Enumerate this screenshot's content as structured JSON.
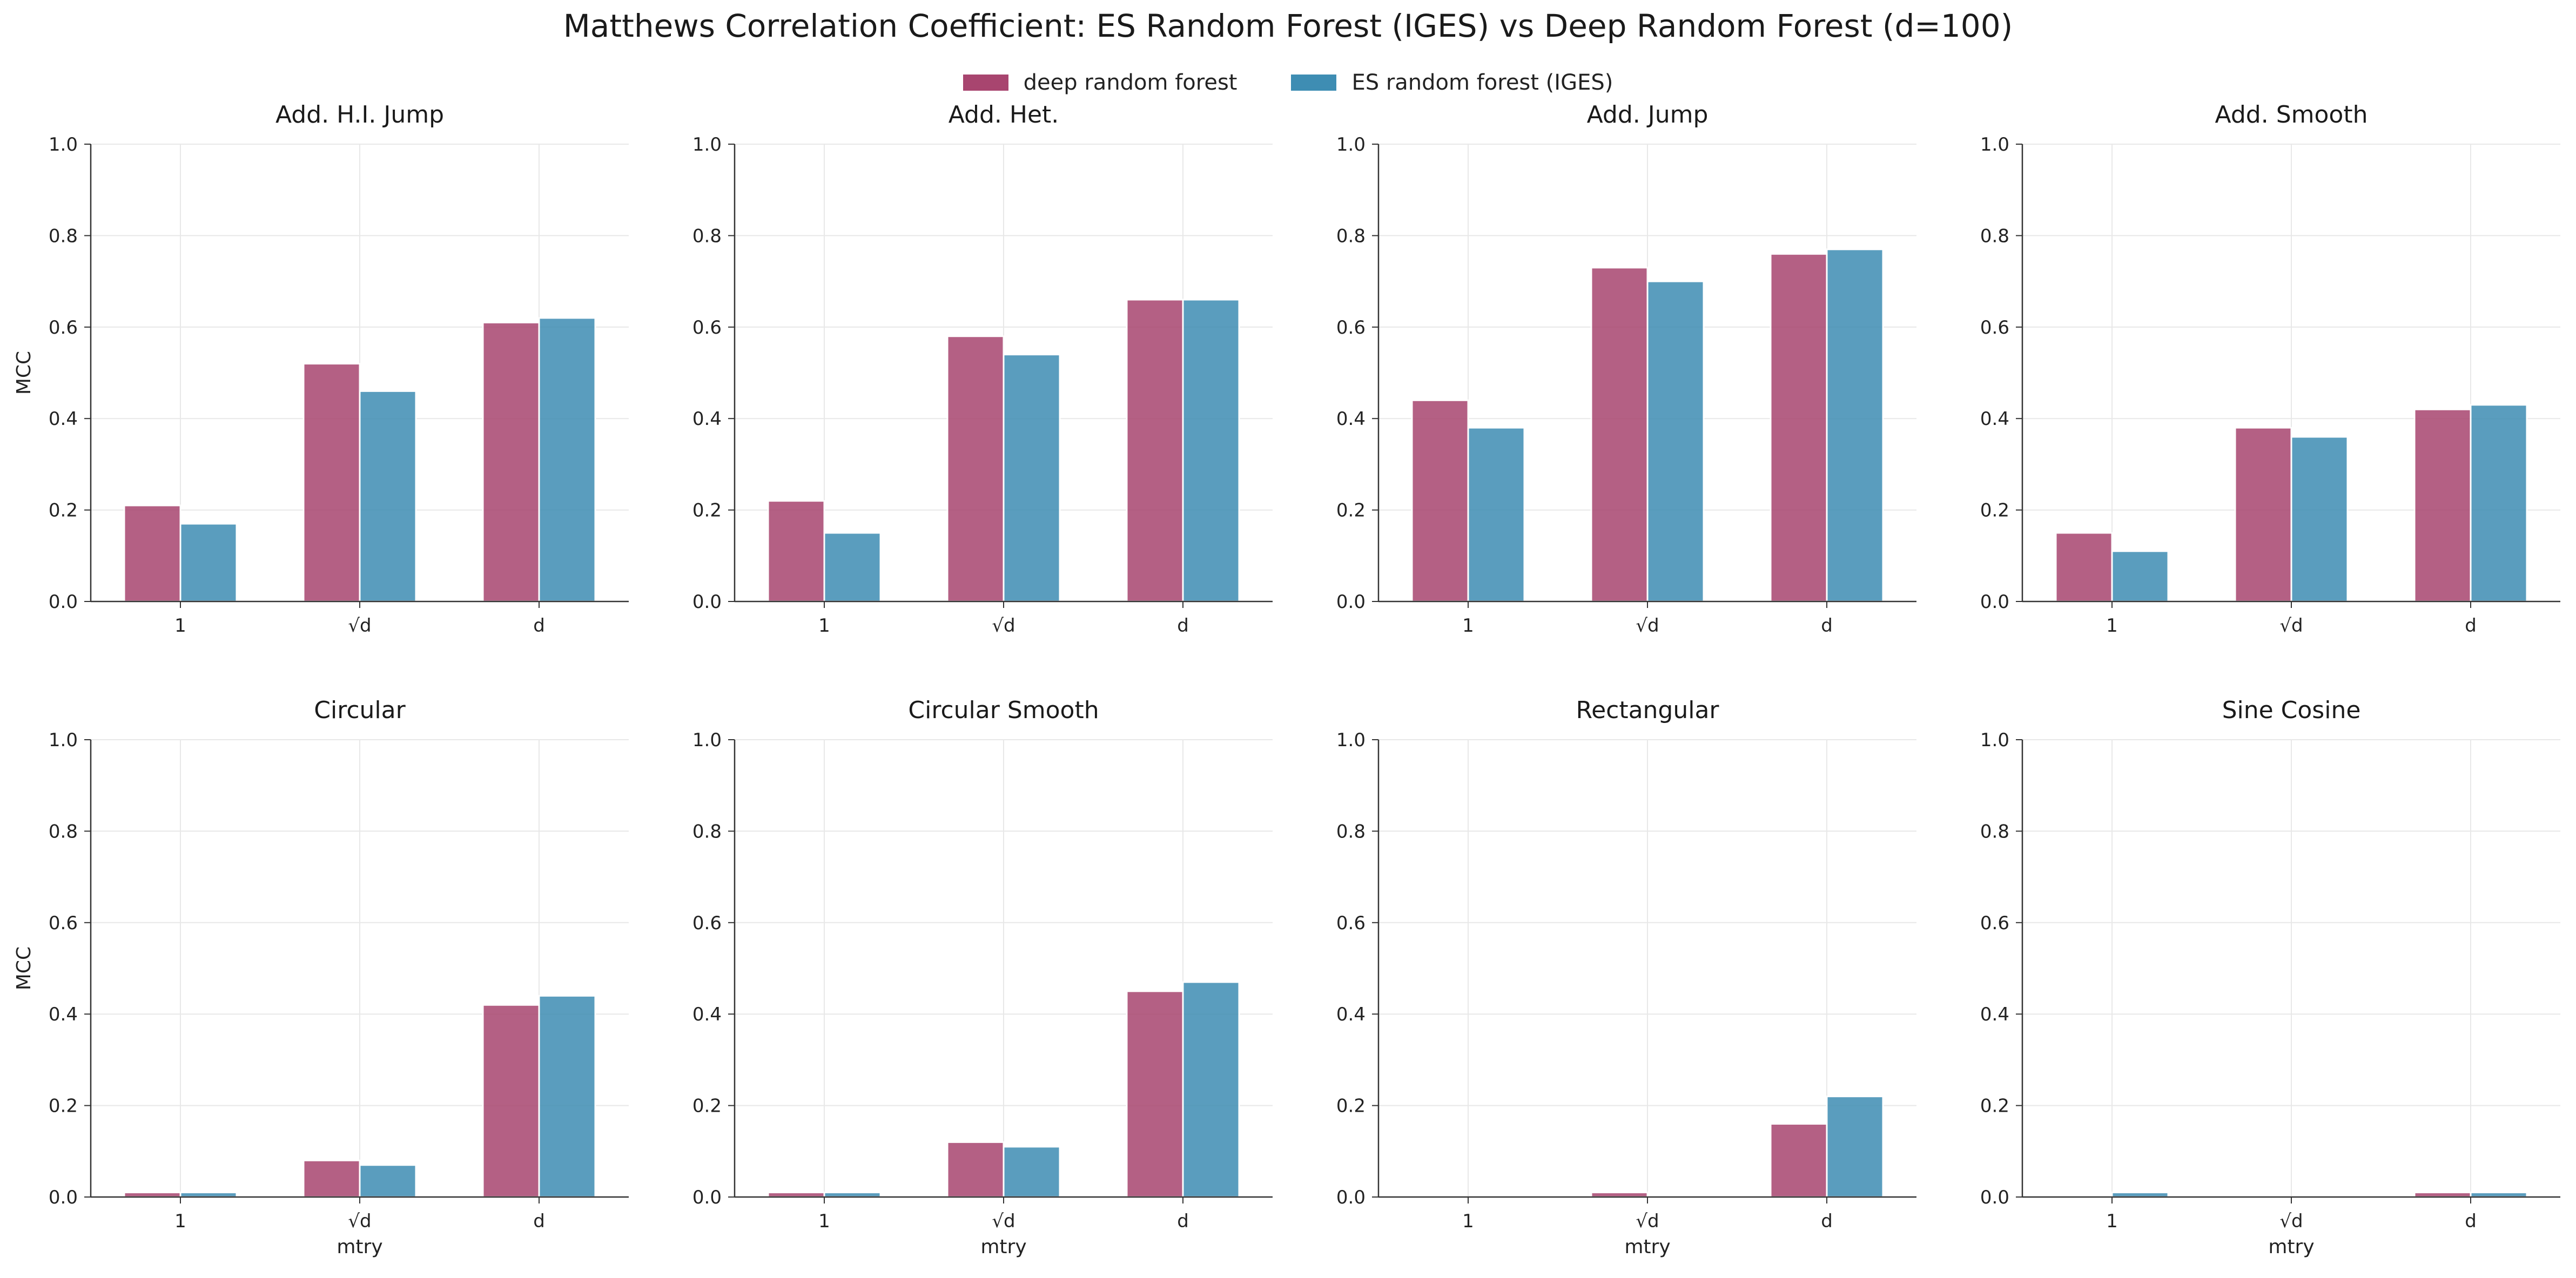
{
  "title": "Matthews Correlation Coefficient: ES Random Forest (IGES) vs Deep Random Forest (d=100)",
  "legend": [
    {
      "label": "deep random forest",
      "color": "#a8456f"
    },
    {
      "label": "ES random forest (IGES)",
      "color": "#3e8db3"
    }
  ],
  "colors": {
    "axis": "#333333",
    "grid": "#e8e8e8",
    "bar_edge": "#ffffff"
  },
  "chart_data": [
    {
      "type": "bar",
      "title": "Add. H.I. Jump",
      "categories": [
        "1",
        "√d",
        "d"
      ],
      "xlabel": "",
      "ylabel": "MCC",
      "ylim": [
        0,
        1.0
      ],
      "yticks": [
        "0.0",
        "0.2",
        "0.4",
        "0.6",
        "0.8",
        "1.0"
      ],
      "grid": true,
      "series": [
        {
          "name": "deep random forest",
          "values": [
            0.21,
            0.52,
            0.61
          ]
        },
        {
          "name": "ES random forest (IGES)",
          "values": [
            0.17,
            0.46,
            0.62
          ]
        }
      ]
    },
    {
      "type": "bar",
      "title": "Add. Het.",
      "categories": [
        "1",
        "√d",
        "d"
      ],
      "xlabel": "",
      "ylabel": "",
      "ylim": [
        0,
        1.0
      ],
      "yticks": [
        "0.0",
        "0.2",
        "0.4",
        "0.6",
        "0.8",
        "1.0"
      ],
      "grid": true,
      "series": [
        {
          "name": "deep random forest",
          "values": [
            0.22,
            0.58,
            0.66
          ]
        },
        {
          "name": "ES random forest (IGES)",
          "values": [
            0.15,
            0.54,
            0.66
          ]
        }
      ]
    },
    {
      "type": "bar",
      "title": "Add. Jump",
      "categories": [
        "1",
        "√d",
        "d"
      ],
      "xlabel": "",
      "ylabel": "",
      "ylim": [
        0,
        1.0
      ],
      "yticks": [
        "0.0",
        "0.2",
        "0.4",
        "0.6",
        "0.8",
        "1.0"
      ],
      "grid": true,
      "series": [
        {
          "name": "deep random forest",
          "values": [
            0.44,
            0.73,
            0.76
          ]
        },
        {
          "name": "ES random forest (IGES)",
          "values": [
            0.38,
            0.7,
            0.77
          ]
        }
      ]
    },
    {
      "type": "bar",
      "title": "Add. Smooth",
      "categories": [
        "1",
        "√d",
        "d"
      ],
      "xlabel": "",
      "ylabel": "",
      "ylim": [
        0,
        1.0
      ],
      "yticks": [
        "0.0",
        "0.2",
        "0.4",
        "0.6",
        "0.8",
        "1.0"
      ],
      "grid": true,
      "series": [
        {
          "name": "deep random forest",
          "values": [
            0.15,
            0.38,
            0.42
          ]
        },
        {
          "name": "ES random forest (IGES)",
          "values": [
            0.11,
            0.36,
            0.43
          ]
        }
      ]
    },
    {
      "type": "bar",
      "title": "Circular",
      "categories": [
        "1",
        "√d",
        "d"
      ],
      "xlabel": "mtry",
      "ylabel": "MCC",
      "ylim": [
        0,
        1.0
      ],
      "yticks": [
        "0.0",
        "0.2",
        "0.4",
        "0.6",
        "0.8",
        "1.0"
      ],
      "grid": true,
      "series": [
        {
          "name": "deep random forest",
          "values": [
            0.01,
            0.08,
            0.42
          ]
        },
        {
          "name": "ES random forest (IGES)",
          "values": [
            0.01,
            0.07,
            0.44
          ]
        }
      ]
    },
    {
      "type": "bar",
      "title": "Circular Smooth",
      "categories": [
        "1",
        "√d",
        "d"
      ],
      "xlabel": "mtry",
      "ylabel": "",
      "ylim": [
        0,
        1.0
      ],
      "yticks": [
        "0.0",
        "0.2",
        "0.4",
        "0.6",
        "0.8",
        "1.0"
      ],
      "grid": true,
      "series": [
        {
          "name": "deep random forest",
          "values": [
            0.01,
            0.12,
            0.45
          ]
        },
        {
          "name": "ES random forest (IGES)",
          "values": [
            0.01,
            0.11,
            0.47
          ]
        }
      ]
    },
    {
      "type": "bar",
      "title": "Rectangular",
      "categories": [
        "1",
        "√d",
        "d"
      ],
      "xlabel": "mtry",
      "ylabel": "",
      "ylim": [
        0,
        1.0
      ],
      "yticks": [
        "0.0",
        "0.2",
        "0.4",
        "0.6",
        "0.8",
        "1.0"
      ],
      "grid": true,
      "series": [
        {
          "name": "deep random forest",
          "values": [
            0.0,
            0.01,
            0.16
          ]
        },
        {
          "name": "ES random forest (IGES)",
          "values": [
            0.0,
            0.0,
            0.22
          ]
        }
      ]
    },
    {
      "type": "bar",
      "title": "Sine Cosine",
      "categories": [
        "1",
        "√d",
        "d"
      ],
      "xlabel": "mtry",
      "ylabel": "",
      "ylim": [
        0,
        1.0
      ],
      "yticks": [
        "0.0",
        "0.2",
        "0.4",
        "0.6",
        "0.8",
        "1.0"
      ],
      "grid": true,
      "series": [
        {
          "name": "deep random forest",
          "values": [
            0.0,
            0.0,
            0.01
          ]
        },
        {
          "name": "ES random forest (IGES)",
          "values": [
            0.01,
            0.0,
            0.01
          ]
        }
      ]
    }
  ]
}
